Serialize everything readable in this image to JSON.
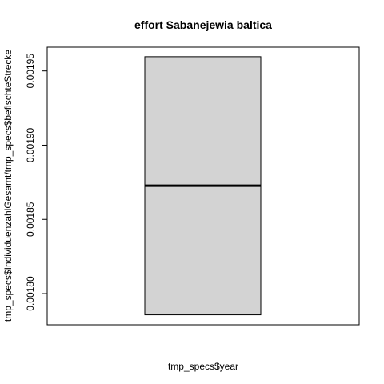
{
  "chart_data": {
    "type": "boxplot",
    "title": "effort Sabanejewia baltica",
    "xlabel": "tmp_specs$year",
    "ylabel": "tmp_specs$IndividuenzahlGesamt/tmp_specs$befischteStrecke",
    "ylim": [
      0.001779,
      0.001966
    ],
    "yticks": [
      "0.00180",
      "0.00185",
      "0.00190",
      "0.00195"
    ],
    "ytick_values": [
      0.0018,
      0.00185,
      0.0019,
      0.00195
    ],
    "box": {
      "min": 0.0017857,
      "q1": 0.0017857,
      "median": 0.0018727,
      "q3": 0.0019596,
      "max": 0.0019596
    },
    "colors": {
      "box_fill": "#d3d3d3",
      "stroke": "#000000"
    }
  }
}
